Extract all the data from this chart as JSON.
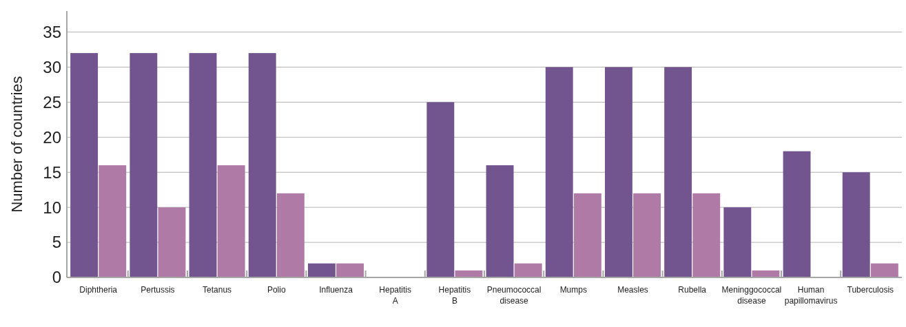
{
  "chart_data": {
    "type": "bar",
    "ylabel": "Number of countries",
    "categories": [
      "Diphtheria",
      "Pertussis",
      "Tetanus",
      "Polio",
      "Influenza",
      "Hepatitis A",
      "Hepatitis B",
      "Pneumococcal disease",
      "Mumps",
      "Measles",
      "Rubella",
      "Meninggococcal disease",
      "Human papillomavirus",
      "Tuberculosis"
    ],
    "series": [
      {
        "color": "#72548f",
        "values": [
          32,
          32,
          32,
          32,
          2,
          0,
          25,
          16,
          30,
          30,
          30,
          10,
          18,
          15
        ]
      },
      {
        "color": "#b07aa6",
        "values": [
          16,
          10,
          16,
          12,
          2,
          0,
          1,
          2,
          12,
          12,
          12,
          1,
          0,
          2
        ]
      }
    ],
    "ylim": [
      0,
      38
    ],
    "yticks": [
      0,
      5,
      10,
      15,
      20,
      25,
      30,
      35
    ],
    "grid": "y"
  }
}
